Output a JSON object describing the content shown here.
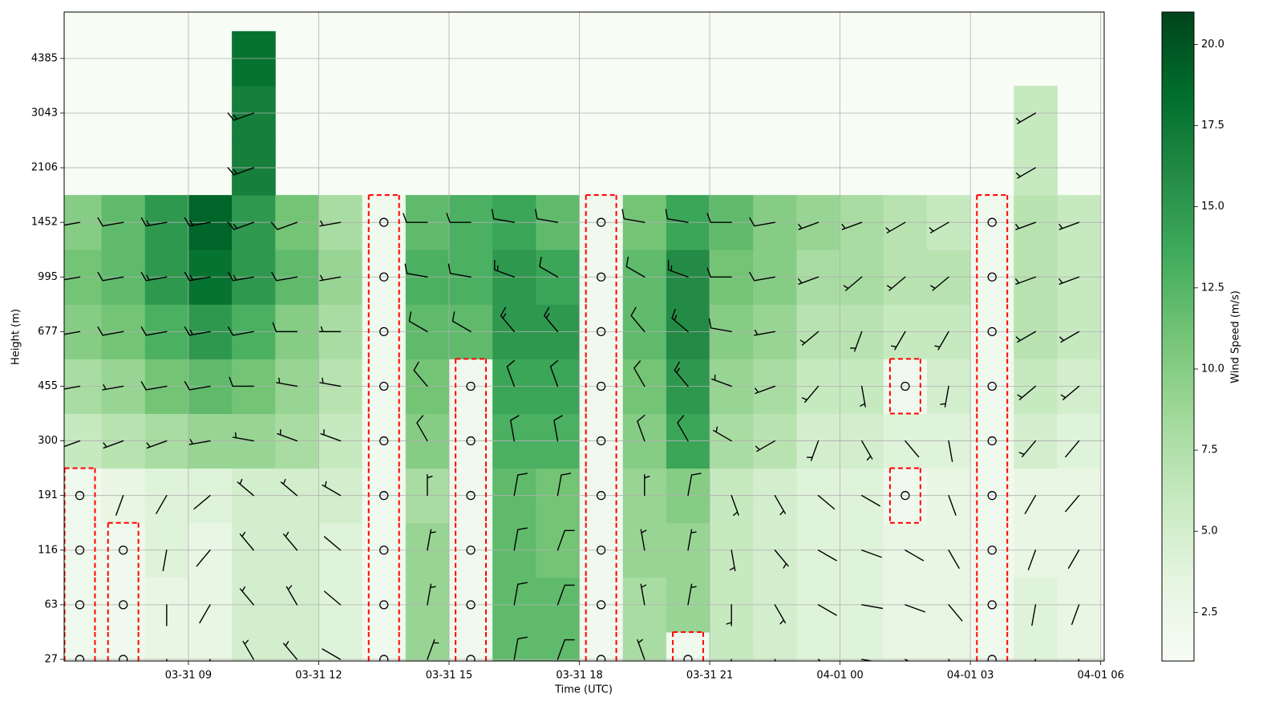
{
  "chart_data": {
    "type": "heatmap",
    "xlabel": "Time (UTC)",
    "ylabel": "Height (m)",
    "colorbar_label": "Wind Speed (m/s)",
    "colormap": [
      "#f7fcf5",
      "#e5f5e0",
      "#c7e9c0",
      "#a1d99b",
      "#74c476",
      "#41ab5d",
      "#238b45",
      "#006d2c",
      "#00441b"
    ],
    "clim": [
      1,
      21
    ],
    "cticks": [
      {
        "value": 2.5,
        "label": "2.5"
      },
      {
        "value": 5,
        "label": "5.0"
      },
      {
        "value": 7.5,
        "label": "7.5"
      },
      {
        "value": 10,
        "label": "10.0"
      },
      {
        "value": 12.5,
        "label": "12.5"
      },
      {
        "value": 15,
        "label": "15.0"
      },
      {
        "value": 17.5,
        "label": "17.5"
      },
      {
        "value": 20,
        "label": "20.0"
      }
    ],
    "grid": true,
    "xlim": [
      6.14,
      30.08
    ],
    "xticks": [
      {
        "value": 9,
        "label": "03-31 09"
      },
      {
        "value": 12,
        "label": "03-31 12"
      },
      {
        "value": 15,
        "label": "03-31 15"
      },
      {
        "value": 18,
        "label": "03-31 18"
      },
      {
        "value": 21,
        "label": "03-31 21"
      },
      {
        "value": 24,
        "label": "04-01 00"
      },
      {
        "value": 27,
        "label": "04-01 03"
      },
      {
        "value": 30,
        "label": "04-01 06"
      }
    ],
    "ylim": [
      -0.03,
      11.85
    ],
    "yticks": [
      {
        "value": 0,
        "label": "27"
      },
      {
        "value": 1,
        "label": "63"
      },
      {
        "value": 2,
        "label": "116"
      },
      {
        "value": 3,
        "label": "191"
      },
      {
        "value": 4,
        "label": "300"
      },
      {
        "value": 5,
        "label": "455"
      },
      {
        "value": 6,
        "label": "677"
      },
      {
        "value": 7,
        "label": "995"
      },
      {
        "value": 8,
        "label": "1452"
      },
      {
        "value": 9,
        "label": "2106"
      },
      {
        "value": 10,
        "label": "3043"
      },
      {
        "value": 11,
        "label": "4385"
      }
    ],
    "x": [
      6.5,
      7.5,
      8.5,
      9.5,
      10.5,
      11.5,
      12.5,
      13.5,
      14.5,
      15.5,
      16.5,
      17.5,
      18.5,
      19.5,
      20.5,
      21.5,
      22.5,
      23.5,
      24.5,
      25.5,
      26.5,
      27.5,
      28.5,
      29.5
    ],
    "levels": [
      0,
      1,
      2,
      3,
      4,
      5,
      6,
      7,
      8,
      9,
      10,
      11
    ],
    "z": [
      [
        2,
        2,
        3,
        3,
        5,
        5,
        4,
        2,
        9,
        2,
        12,
        12,
        2,
        8,
        2,
        6,
        5,
        4,
        4,
        3,
        3,
        2,
        4,
        3
      ],
      [
        2,
        2,
        3,
        3,
        5,
        5,
        4,
        2,
        9,
        2,
        12,
        12,
        2,
        8,
        9,
        6,
        5,
        4,
        4,
        3,
        3,
        2,
        4,
        3
      ],
      [
        2,
        2,
        4,
        3,
        5,
        5,
        4,
        2,
        9,
        2,
        12,
        11,
        2,
        9,
        9,
        6,
        5,
        4,
        4,
        3,
        3,
        2,
        3,
        3
      ],
      [
        2,
        3,
        4,
        4,
        5,
        5,
        5,
        2,
        8,
        2,
        12,
        11,
        2,
        9,
        10,
        6,
        5,
        4,
        4,
        2,
        3,
        2,
        3,
        3
      ],
      [
        6,
        7,
        8,
        9,
        9,
        8,
        6,
        2,
        10,
        2,
        13,
        13,
        2,
        10,
        14,
        8,
        7,
        5,
        5,
        4,
        4,
        2,
        5,
        4
      ],
      [
        8,
        9,
        11,
        12,
        11,
        9,
        7,
        2,
        11,
        2,
        14,
        14,
        2,
        11,
        15,
        9,
        8,
        6,
        6,
        2,
        5,
        2,
        6,
        5
      ],
      [
        10,
        11,
        13,
        15,
        13,
        10,
        8,
        2,
        12,
        12,
        15,
        15,
        2,
        12,
        16,
        10,
        9,
        7,
        7,
        6,
        6,
        2,
        7,
        6
      ],
      [
        11,
        12,
        15,
        18,
        15,
        12,
        9,
        2,
        13,
        13,
        15,
        14,
        2,
        12,
        16,
        11,
        10,
        8,
        8,
        7,
        7,
        2,
        7,
        6
      ],
      [
        10,
        12,
        15,
        19,
        15,
        11,
        8,
        2,
        12,
        13,
        14,
        12,
        2,
        11,
        14,
        12,
        10,
        9,
        8,
        7,
        6,
        2,
        7,
        6
      ],
      [
        null,
        null,
        null,
        null,
        17,
        null,
        null,
        null,
        null,
        null,
        null,
        null,
        null,
        null,
        null,
        null,
        null,
        null,
        null,
        null,
        null,
        null,
        6,
        null
      ],
      [
        null,
        null,
        null,
        null,
        17,
        null,
        null,
        null,
        null,
        null,
        null,
        null,
        null,
        null,
        null,
        null,
        null,
        null,
        null,
        null,
        null,
        null,
        6,
        null
      ],
      [
        null,
        null,
        null,
        null,
        18,
        null,
        null,
        null,
        null,
        null,
        null,
        null,
        null,
        null,
        null,
        null,
        null,
        null,
        null,
        null,
        null,
        null,
        null,
        null
      ]
    ],
    "directions": [
      [
        null,
        null,
        170,
        200,
        330,
        320,
        300,
        null,
        20,
        null,
        10,
        20,
        null,
        340,
        null,
        190,
        160,
        130,
        100,
        120,
        150,
        null,
        200,
        210
      ],
      [
        null,
        null,
        180,
        210,
        320,
        330,
        310,
        null,
        10,
        null,
        10,
        20,
        null,
        350,
        10,
        180,
        150,
        120,
        100,
        110,
        140,
        null,
        190,
        200
      ],
      [
        null,
        null,
        190,
        220,
        320,
        320,
        310,
        null,
        10,
        null,
        10,
        20,
        null,
        350,
        10,
        170,
        140,
        120,
        110,
        120,
        150,
        null,
        200,
        210
      ],
      [
        null,
        200,
        210,
        230,
        310,
        310,
        300,
        null,
        0,
        null,
        10,
        10,
        null,
        0,
        10,
        160,
        150,
        130,
        120,
        null,
        160,
        null,
        210,
        220
      ],
      [
        250,
        250,
        250,
        260,
        280,
        290,
        290,
        null,
        330,
        null,
        350,
        350,
        null,
        340,
        330,
        300,
        240,
        200,
        150,
        140,
        170,
        null,
        220,
        220
      ],
      [
        260,
        260,
        260,
        260,
        270,
        280,
        280,
        null,
        320,
        null,
        340,
        340,
        null,
        330,
        320,
        290,
        250,
        220,
        170,
        null,
        190,
        null,
        230,
        230
      ],
      [
        260,
        260,
        260,
        260,
        260,
        270,
        270,
        null,
        300,
        300,
        320,
        320,
        null,
        320,
        310,
        280,
        260,
        230,
        200,
        210,
        210,
        null,
        240,
        240
      ],
      [
        260,
        260,
        260,
        260,
        260,
        260,
        260,
        null,
        280,
        280,
        290,
        300,
        null,
        300,
        290,
        270,
        260,
        250,
        230,
        230,
        230,
        null,
        250,
        250
      ],
      [
        260,
        260,
        260,
        260,
        250,
        250,
        260,
        null,
        270,
        270,
        280,
        280,
        null,
        280,
        280,
        270,
        260,
        250,
        250,
        240,
        240,
        null,
        250,
        250
      ],
      [
        null,
        null,
        null,
        null,
        250,
        null,
        null,
        null,
        null,
        null,
        null,
        null,
        null,
        null,
        null,
        null,
        null,
        null,
        null,
        null,
        null,
        null,
        240,
        null
      ],
      [
        null,
        null,
        null,
        null,
        250,
        null,
        null,
        null,
        null,
        null,
        null,
        null,
        null,
        null,
        null,
        null,
        null,
        null,
        null,
        null,
        null,
        null,
        240,
        null
      ],
      [
        null,
        null,
        null,
        null,
        null,
        null,
        null,
        null,
        null,
        null,
        null,
        null,
        null,
        null,
        null,
        null,
        null,
        null,
        null,
        null,
        null,
        null,
        null,
        null
      ]
    ]
  }
}
